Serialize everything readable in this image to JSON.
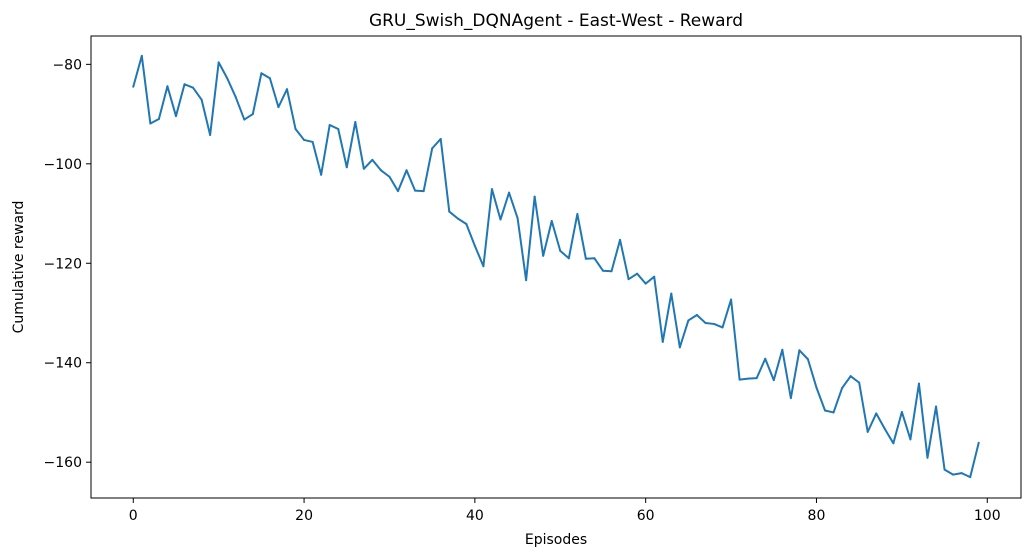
{
  "chart_data": {
    "type": "line",
    "title": "GRU_Swish_DQNAgent - East-West - Reward",
    "xlabel": "Episodes",
    "ylabel": "Cumulative reward",
    "xlim": [
      -4.95,
      103.95
    ],
    "ylim": [
      -167.2,
      -74.3
    ],
    "xticks": [
      0,
      20,
      40,
      60,
      80,
      100
    ],
    "yticks": [
      -80,
      -100,
      -120,
      -140,
      -160
    ],
    "grid": false,
    "legend": "none",
    "series": [
      {
        "color": "#1f77b4",
        "x": [
          0,
          1,
          2,
          3,
          4,
          5,
          6,
          7,
          8,
          9,
          10,
          11,
          12,
          13,
          14,
          15,
          16,
          17,
          18,
          19,
          20,
          21,
          22,
          23,
          24,
          25,
          26,
          27,
          28,
          29,
          30,
          31,
          32,
          33,
          34,
          35,
          36,
          37,
          38,
          39,
          40,
          41,
          42,
          43,
          44,
          45,
          46,
          47,
          48,
          49,
          50,
          51,
          52,
          53,
          54,
          55,
          56,
          57,
          58,
          59,
          60,
          61,
          62,
          63,
          64,
          65,
          66,
          67,
          68,
          69,
          70,
          71,
          72,
          73,
          74,
          75,
          76,
          77,
          78,
          79,
          80,
          81,
          82,
          83,
          84,
          85,
          86,
          87,
          88,
          89,
          90,
          91,
          92,
          93,
          94,
          95,
          96,
          97,
          98,
          99
        ],
        "values": [
          -84.5,
          -78.3,
          -91.9,
          -91.0,
          -84.4,
          -90.4,
          -84.0,
          -84.7,
          -87.1,
          -94.2,
          -79.6,
          -82.8,
          -86.6,
          -91.1,
          -90.0,
          -81.8,
          -82.8,
          -88.6,
          -85.0,
          -93.0,
          -95.2,
          -95.6,
          -102.2,
          -92.2,
          -93.0,
          -100.7,
          -91.6,
          -101.0,
          -99.2,
          -101.3,
          -102.6,
          -105.5,
          -101.3,
          -105.4,
          -105.5,
          -96.9,
          -95.0,
          -109.6,
          -111.0,
          -112.1,
          -116.5,
          -120.6,
          -105.1,
          -111.2,
          -105.8,
          -110.9,
          -123.4,
          -106.6,
          -118.5,
          -111.5,
          -117.5,
          -119.0,
          -110.1,
          -119.1,
          -119.0,
          -121.5,
          -121.6,
          -115.3,
          -123.2,
          -122.1,
          -124.1,
          -122.7,
          -135.8,
          -126.1,
          -136.9,
          -131.5,
          -130.4,
          -132.0,
          -132.2,
          -132.9,
          -127.3,
          -143.4,
          -143.2,
          -143.1,
          -139.2,
          -143.5,
          -137.4,
          -147.1,
          -137.5,
          -139.3,
          -145.0,
          -149.6,
          -150.0,
          -145.1,
          -142.7,
          -144.0,
          -153.9,
          -150.2,
          -153.3,
          -156.2,
          -149.9,
          -155.4,
          -144.2,
          -159.1,
          -148.8,
          -161.5,
          -162.5,
          -162.2,
          -163.0,
          -156.1
        ]
      }
    ]
  }
}
